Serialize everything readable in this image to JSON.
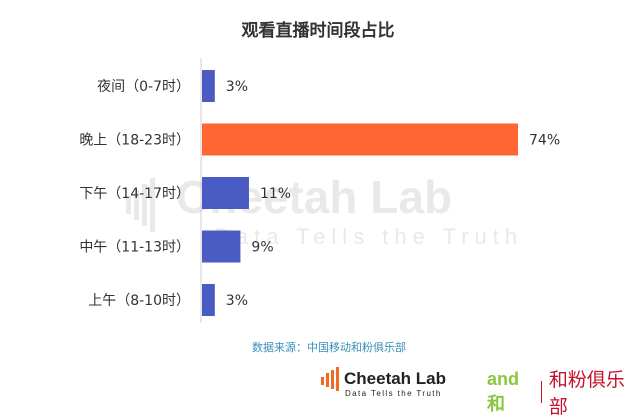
{
  "chart_data": {
    "type": "bar",
    "orientation": "horizontal",
    "title": "观看直播时间段占比",
    "categories": [
      "夜间（0-7时）",
      "晚上（18-23时）",
      "下午（14-17时）",
      "中午（11-13时）",
      "上午（8-10时）"
    ],
    "values": [
      3,
      74,
      11,
      9,
      3
    ],
    "value_labels": [
      "3%",
      "74%",
      "11%",
      "9%",
      "3%"
    ],
    "unit": "%",
    "highlight_index": 1,
    "xlim": [
      0,
      74
    ],
    "grid": false,
    "colors": {
      "default": "#4a5bc3",
      "highlight": "#ff6633",
      "title": "#333333",
      "source": "#3a8fb7"
    }
  },
  "source_note": "数据来源：中国移动和粉俱乐部",
  "watermark": {
    "name": "Cheetah Lab",
    "tagline": "Data Tells the Truth"
  },
  "footer": {
    "logo_name": "Cheetah Lab",
    "logo_tagline": "Data Tells the Truth",
    "partner_mark": "and和",
    "partner_name": "和粉俱乐部",
    "brand_color": "#c4122f"
  }
}
